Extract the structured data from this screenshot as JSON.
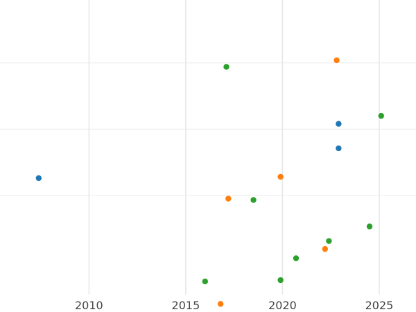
{
  "chart_data": {
    "type": "scatter",
    "title": "",
    "xlabel": "",
    "ylabel": "",
    "grid": true,
    "xlim": [
      2005.4,
      2026.9
    ],
    "ylim": [
      -15,
      29.5
    ],
    "x_ticks": [
      2010,
      2015,
      2020,
      2025
    ],
    "x_tick_labels": [
      "2010",
      "2015",
      "2020",
      "2025"
    ],
    "y_gridlines": [
      0,
      10,
      20
    ],
    "y_tick_labels_visible": false,
    "series": [
      {
        "color": "#1f77b4",
        "points": [
          {
            "x": 2007.4,
            "y": 2.6
          },
          {
            "x": 2022.9,
            "y": 10.8
          },
          {
            "x": 2022.9,
            "y": 7.1
          }
        ]
      },
      {
        "color": "#ff7f0e",
        "points": [
          {
            "x": 2022.8,
            "y": 20.4
          },
          {
            "x": 2019.9,
            "y": 2.8
          },
          {
            "x": 2017.2,
            "y": -0.5
          },
          {
            "x": 2022.2,
            "y": -8.1
          },
          {
            "x": 2016.8,
            "y": -16.4
          }
        ]
      },
      {
        "color": "#2ca02c",
        "points": [
          {
            "x": 2017.1,
            "y": 19.4
          },
          {
            "x": 2025.1,
            "y": 12.0
          },
          {
            "x": 2018.5,
            "y": -0.7
          },
          {
            "x": 2024.5,
            "y": -4.7
          },
          {
            "x": 2022.4,
            "y": -6.9
          },
          {
            "x": 2020.7,
            "y": -9.5
          },
          {
            "x": 2016.0,
            "y": -13.0
          },
          {
            "x": 2019.9,
            "y": -12.8
          }
        ]
      }
    ]
  }
}
